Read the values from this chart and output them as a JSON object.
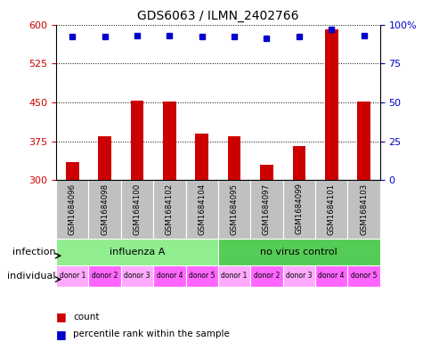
{
  "title": "GDS6063 / ILMN_2402766",
  "samples": [
    "GSM1684096",
    "GSM1684098",
    "GSM1684100",
    "GSM1684102",
    "GSM1684104",
    "GSM1684095",
    "GSM1684097",
    "GSM1684099",
    "GSM1684101",
    "GSM1684103"
  ],
  "counts": [
    335,
    385,
    453,
    452,
    390,
    385,
    330,
    365,
    590,
    452
  ],
  "percentiles": [
    92,
    92,
    93,
    93,
    92,
    92,
    91,
    92,
    97,
    93
  ],
  "ylim_left": [
    300,
    600
  ],
  "yticks_left": [
    300,
    375,
    450,
    525,
    600
  ],
  "ylim_right": [
    0,
    100
  ],
  "yticks_right": [
    0,
    25,
    50,
    75,
    100
  ],
  "infection_groups": [
    {
      "label": "influenza A",
      "span": [
        0,
        5
      ],
      "color": "#90EE90"
    },
    {
      "label": "no virus control",
      "span": [
        5,
        10
      ],
      "color": "#55CC55"
    }
  ],
  "individual_labels": [
    "donor 1",
    "donor 2",
    "donor 3",
    "donor 4",
    "donor 5",
    "donor 1",
    "donor 2",
    "donor 3",
    "donor 4",
    "donor 5"
  ],
  "individual_colors": [
    "#FFAAFF",
    "#FF66FF",
    "#FFAAFF",
    "#FF66FF",
    "#FF66FF",
    "#FFAAFF",
    "#FF66FF",
    "#FFAAFF",
    "#FF66FF",
    "#FF66FF"
  ],
  "bar_color": "#CC0000",
  "dot_color": "#0000CC",
  "bar_width": 0.4,
  "axis_color_left": "#CC0000",
  "axis_color_right": "#0000CC",
  "background_color": "#FFFFFF",
  "sample_box_color": "#C0C0C0",
  "legend_count_color": "#CC0000",
  "legend_pct_color": "#0000CC"
}
